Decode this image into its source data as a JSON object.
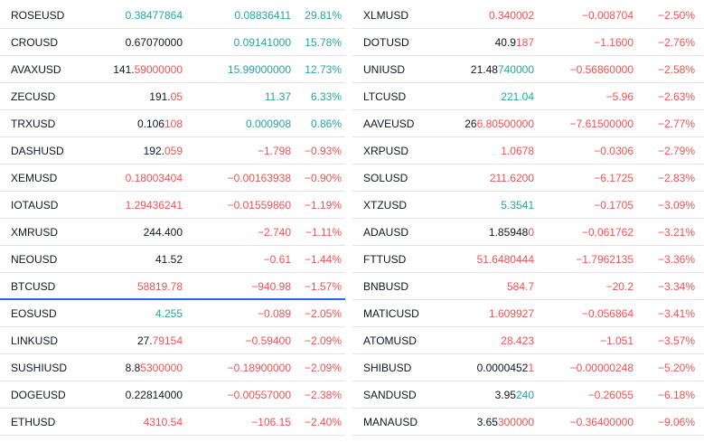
{
  "colors": {
    "up": "#26a69a",
    "down": "#ef5350",
    "text": "#131722",
    "selected_border": "#2962ff"
  },
  "left_rows": [
    {
      "symbol": "ROSEUSD",
      "last_black": "",
      "last_colored": "0.38477864",
      "last_dir": "up",
      "change": "0.08836411",
      "change_pct": "29.81%",
      "dir": "up"
    },
    {
      "symbol": "CROUSD",
      "last_black": "0.67070000",
      "last_colored": "",
      "last_dir": "up",
      "change": "0.09141000",
      "change_pct": "15.78%",
      "dir": "up"
    },
    {
      "symbol": "AVAXUSD",
      "last_black": "141.",
      "last_colored": "59000000",
      "last_dir": "down",
      "change": "15.99000000",
      "change_pct": "12.73%",
      "dir": "up"
    },
    {
      "symbol": "ZECUSD",
      "last_black": "191.",
      "last_colored": "05",
      "last_dir": "down",
      "change": "11.37",
      "change_pct": "6.33%",
      "dir": "up"
    },
    {
      "symbol": "TRXUSD",
      "last_black": "0.106",
      "last_colored": "108",
      "last_dir": "down",
      "change": "0.000908",
      "change_pct": "0.86%",
      "dir": "up"
    },
    {
      "symbol": "DASHUSD",
      "last_black": "192.",
      "last_colored": "059",
      "last_dir": "down",
      "change": "−1.798",
      "change_pct": "−0.93%",
      "dir": "down"
    },
    {
      "symbol": "XEMUSD",
      "last_black": "",
      "last_colored": "0.18003404",
      "last_dir": "down",
      "change": "−0.00163938",
      "change_pct": "−0.90%",
      "dir": "down"
    },
    {
      "symbol": "IOTAUSD",
      "last_black": "",
      "last_colored": "1.29436241",
      "last_dir": "down",
      "change": "−0.01559860",
      "change_pct": "−1.19%",
      "dir": "down"
    },
    {
      "symbol": "XMRUSD",
      "last_black": "244.400",
      "last_colored": "",
      "last_dir": "down",
      "change": "−2.740",
      "change_pct": "−1.11%",
      "dir": "down"
    },
    {
      "symbol": "NEOUSD",
      "last_black": "41.52",
      "last_colored": "",
      "last_dir": "down",
      "change": "−0.61",
      "change_pct": "−1.44%",
      "dir": "down"
    },
    {
      "symbol": "BTCUSD",
      "last_black": "",
      "last_colored": "58819.78",
      "last_dir": "down",
      "change": "−940.98",
      "change_pct": "−1.57%",
      "dir": "down",
      "selected": true
    },
    {
      "symbol": "EOSUSD",
      "last_black": "",
      "last_colored": "4.255",
      "last_dir": "up",
      "change": "−0.089",
      "change_pct": "−2.05%",
      "dir": "down"
    },
    {
      "symbol": "LINKUSD",
      "last_black": "27.",
      "last_colored": "79154",
      "last_dir": "down",
      "change": "−0.59400",
      "change_pct": "−2.09%",
      "dir": "down"
    },
    {
      "symbol": "SUSHIUSD",
      "last_black": "8.8",
      "last_colored": "5300000",
      "last_dir": "down",
      "change": "−0.18900000",
      "change_pct": "−2.09%",
      "dir": "down"
    },
    {
      "symbol": "DOGEUSD",
      "last_black": "0.22814000",
      "last_colored": "",
      "last_dir": "down",
      "change": "−0.00557000",
      "change_pct": "−2.38%",
      "dir": "down"
    },
    {
      "symbol": "ETHUSD",
      "last_black": "",
      "last_colored": "4310.54",
      "last_dir": "down",
      "change": "−106.15",
      "change_pct": "−2.40%",
      "dir": "down"
    }
  ],
  "right_rows": [
    {
      "symbol": "XLMUSD",
      "last_black": "",
      "last_colored": "0.340002",
      "last_dir": "down",
      "change": "−0.008704",
      "change_pct": "−2.50%",
      "dir": "down"
    },
    {
      "symbol": "DOTUSD",
      "last_black": "40.9",
      "last_colored": "187",
      "last_dir": "down",
      "change": "−1.1600",
      "change_pct": "−2.76%",
      "dir": "down"
    },
    {
      "symbol": "UNIUSD",
      "last_black": "21.48",
      "last_colored": "740000",
      "last_dir": "up",
      "change": "−0.56860000",
      "change_pct": "−2.58%",
      "dir": "down"
    },
    {
      "symbol": "LTCUSD",
      "last_black": "",
      "last_colored": "221.04",
      "last_dir": "up",
      "change": "−5.96",
      "change_pct": "−2.63%",
      "dir": "down"
    },
    {
      "symbol": "AAVEUSD",
      "last_black": "26",
      "last_colored": "6.80500000",
      "last_dir": "down",
      "change": "−7.61500000",
      "change_pct": "−2.77%",
      "dir": "down"
    },
    {
      "symbol": "XRPUSD",
      "last_black": "",
      "last_colored": "1.0678",
      "last_dir": "down",
      "change": "−0.0306",
      "change_pct": "−2.79%",
      "dir": "down"
    },
    {
      "symbol": "SOLUSD",
      "last_black": "",
      "last_colored": "211.6200",
      "last_dir": "down",
      "change": "−6.1725",
      "change_pct": "−2.83%",
      "dir": "down"
    },
    {
      "symbol": "XTZUSD",
      "last_black": "",
      "last_colored": "5.3541",
      "last_dir": "up",
      "change": "−0.1705",
      "change_pct": "−3.09%",
      "dir": "down"
    },
    {
      "symbol": "ADAUSD",
      "last_black": "1.85948",
      "last_colored": "0",
      "last_dir": "down",
      "change": "−0.061762",
      "change_pct": "−3.21%",
      "dir": "down"
    },
    {
      "symbol": "FTTUSD",
      "last_black": "",
      "last_colored": "51.6480444",
      "last_dir": "down",
      "change": "−1.7962135",
      "change_pct": "−3.36%",
      "dir": "down"
    },
    {
      "symbol": "BNBUSD",
      "last_black": "",
      "last_colored": "584.7",
      "last_dir": "down",
      "change": "−20.2",
      "change_pct": "−3.34%",
      "dir": "down"
    },
    {
      "symbol": "MATICUSD",
      "last_black": "",
      "last_colored": "1.609927",
      "last_dir": "down",
      "change": "−0.056864",
      "change_pct": "−3.41%",
      "dir": "down"
    },
    {
      "symbol": "ATOMUSD",
      "last_black": "",
      "last_colored": "28.423",
      "last_dir": "down",
      "change": "−1.051",
      "change_pct": "−3.57%",
      "dir": "down"
    },
    {
      "symbol": "SHIBUSD",
      "last_black": "0.0000452",
      "last_colored": "1",
      "last_dir": "down",
      "change": "−0.00000248",
      "change_pct": "−5.20%",
      "dir": "down"
    },
    {
      "symbol": "SANDUSD",
      "last_black": "3.95",
      "last_colored": "240",
      "last_dir": "up",
      "change": "−0.26055",
      "change_pct": "−6.18%",
      "dir": "down"
    },
    {
      "symbol": "MANAUSD",
      "last_black": "3.65",
      "last_colored": "300000",
      "last_dir": "down",
      "change": "−0.36400000",
      "change_pct": "−9.06%",
      "dir": "down"
    }
  ]
}
